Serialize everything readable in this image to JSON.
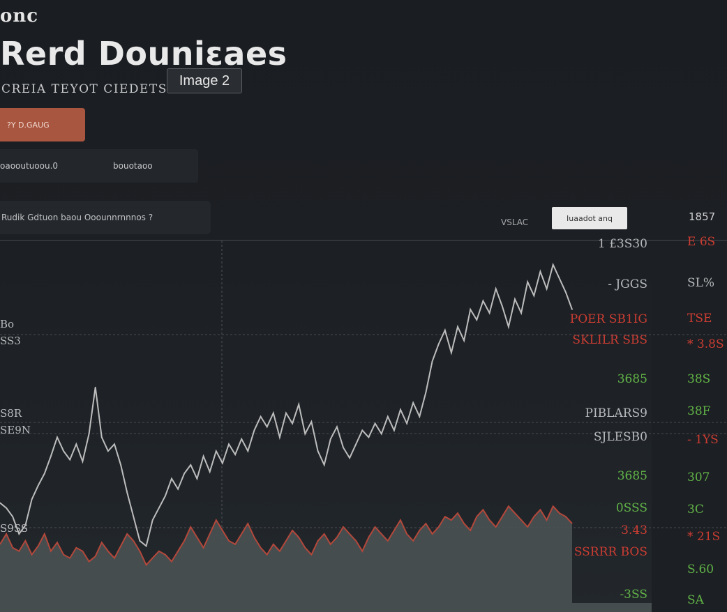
{
  "header": {
    "brand": "onc",
    "title": "Rerd Douniɛaes",
    "subtitle": "CREIA TEYOT CIEDETS",
    "tooltip": "Image 2"
  },
  "controls": {
    "cta_label": "?Y D.GAUG",
    "tab1_label": "oaooutuoou.0",
    "tab2_label": "bouotaoo",
    "search_text": "Rudik Gdtuon baou Ooounnrnnnos ?",
    "top_label": "VSLAC",
    "top_pill_label": "Iuaadot anq",
    "top_right_value": "1857"
  },
  "colors": {
    "background": "#1b1e22",
    "line": "#bdbdbd",
    "area_fill": "#4c5556",
    "area_line": "#b3483b",
    "up": "#62b548",
    "down": "#cc3d33",
    "accent": "#a95640"
  },
  "chart_data": {
    "type": "line",
    "title": "",
    "xlabel": "",
    "ylabel": "",
    "x_start": 0,
    "x_step": 1,
    "series": [
      {
        "values": [
          58,
          55,
          50,
          40,
          45,
          60,
          68,
          75,
          85,
          96,
          88,
          83,
          92,
          82,
          98,
          125,
          96,
          88,
          92,
          80,
          64,
          50,
          36,
          33,
          48,
          55,
          62,
          72,
          66,
          75,
          80,
          72,
          85,
          76,
          88,
          81,
          92,
          86,
          95,
          88,
          100,
          108,
          102,
          110,
          96,
          110,
          104,
          115,
          98,
          105,
          88,
          80,
          95,
          102,
          90,
          84,
          92,
          100,
          96,
          104,
          98,
          108,
          100,
          112,
          104,
          116,
          108,
          122,
          140,
          150,
          158,
          145,
          160,
          152,
          170,
          164,
          175,
          168,
          182,
          172,
          160,
          176,
          168,
          186,
          178,
          192,
          182,
          196,
          188,
          180,
          170
        ]
      },
      {
        "values": [
          34,
          40,
          32,
          30,
          36,
          28,
          33,
          40,
          30,
          35,
          28,
          26,
          32,
          30,
          24,
          27,
          35,
          30,
          26,
          33,
          40,
          36,
          30,
          22,
          26,
          30,
          28,
          24,
          30,
          36,
          44,
          38,
          32,
          40,
          48,
          42,
          36,
          34,
          40,
          46,
          38,
          32,
          28,
          34,
          30,
          36,
          42,
          38,
          32,
          28,
          36,
          40,
          34,
          38,
          44,
          40,
          36,
          30,
          38,
          44,
          40,
          36,
          42,
          48,
          40,
          36,
          42,
          46,
          40,
          44,
          50,
          48,
          52,
          46,
          42,
          50,
          54,
          48,
          44,
          50,
          56,
          52,
          48,
          44,
          50,
          54,
          48,
          56,
          52,
          50,
          46
        ]
      }
    ],
    "ylim": [
      0,
      210
    ],
    "right_axis_labels": [
      {
        "text": "1 £3S30",
        "color": "gray"
      },
      {
        "text": "- JGGS",
        "color": "gray"
      },
      {
        "text": "POER SB1IG",
        "color": "red"
      },
      {
        "text": "SKLILR SBS",
        "color": "red"
      },
      {
        "text": "3685",
        "color": "green"
      },
      {
        "text": "PIBLARS9",
        "color": "gray"
      },
      {
        "text": "SJLESB0",
        "color": "gray"
      },
      {
        "text": "3685",
        "color": "green"
      },
      {
        "text": "0SSS",
        "color": "green"
      },
      {
        "text": "3.43",
        "color": "red"
      },
      {
        "text": "SSRRR BOS",
        "color": "red"
      },
      {
        "text": "-3SS",
        "color": "green"
      }
    ],
    "left_axis_labels": [
      "Bo",
      "SS3",
      "S8R",
      "SE9N",
      "S9SS"
    ],
    "side_values": [
      {
        "text": "E 6S",
        "color": "red"
      },
      {
        "text": "SL%",
        "color": "gray"
      },
      {
        "text": "TSE",
        "color": "red"
      },
      {
        "text": "* 3.8S",
        "color": "red"
      },
      {
        "text": "38S",
        "color": "green"
      },
      {
        "text": "38F",
        "color": "green"
      },
      {
        "text": "- 1YS",
        "color": "red"
      },
      {
        "text": "307",
        "color": "green"
      },
      {
        "text": "3C",
        "color": "green"
      },
      {
        "text": "* 21S",
        "color": "red"
      },
      {
        "text": "S.60",
        "color": "green"
      },
      {
        "text": "SA",
        "color": "green"
      }
    ]
  }
}
